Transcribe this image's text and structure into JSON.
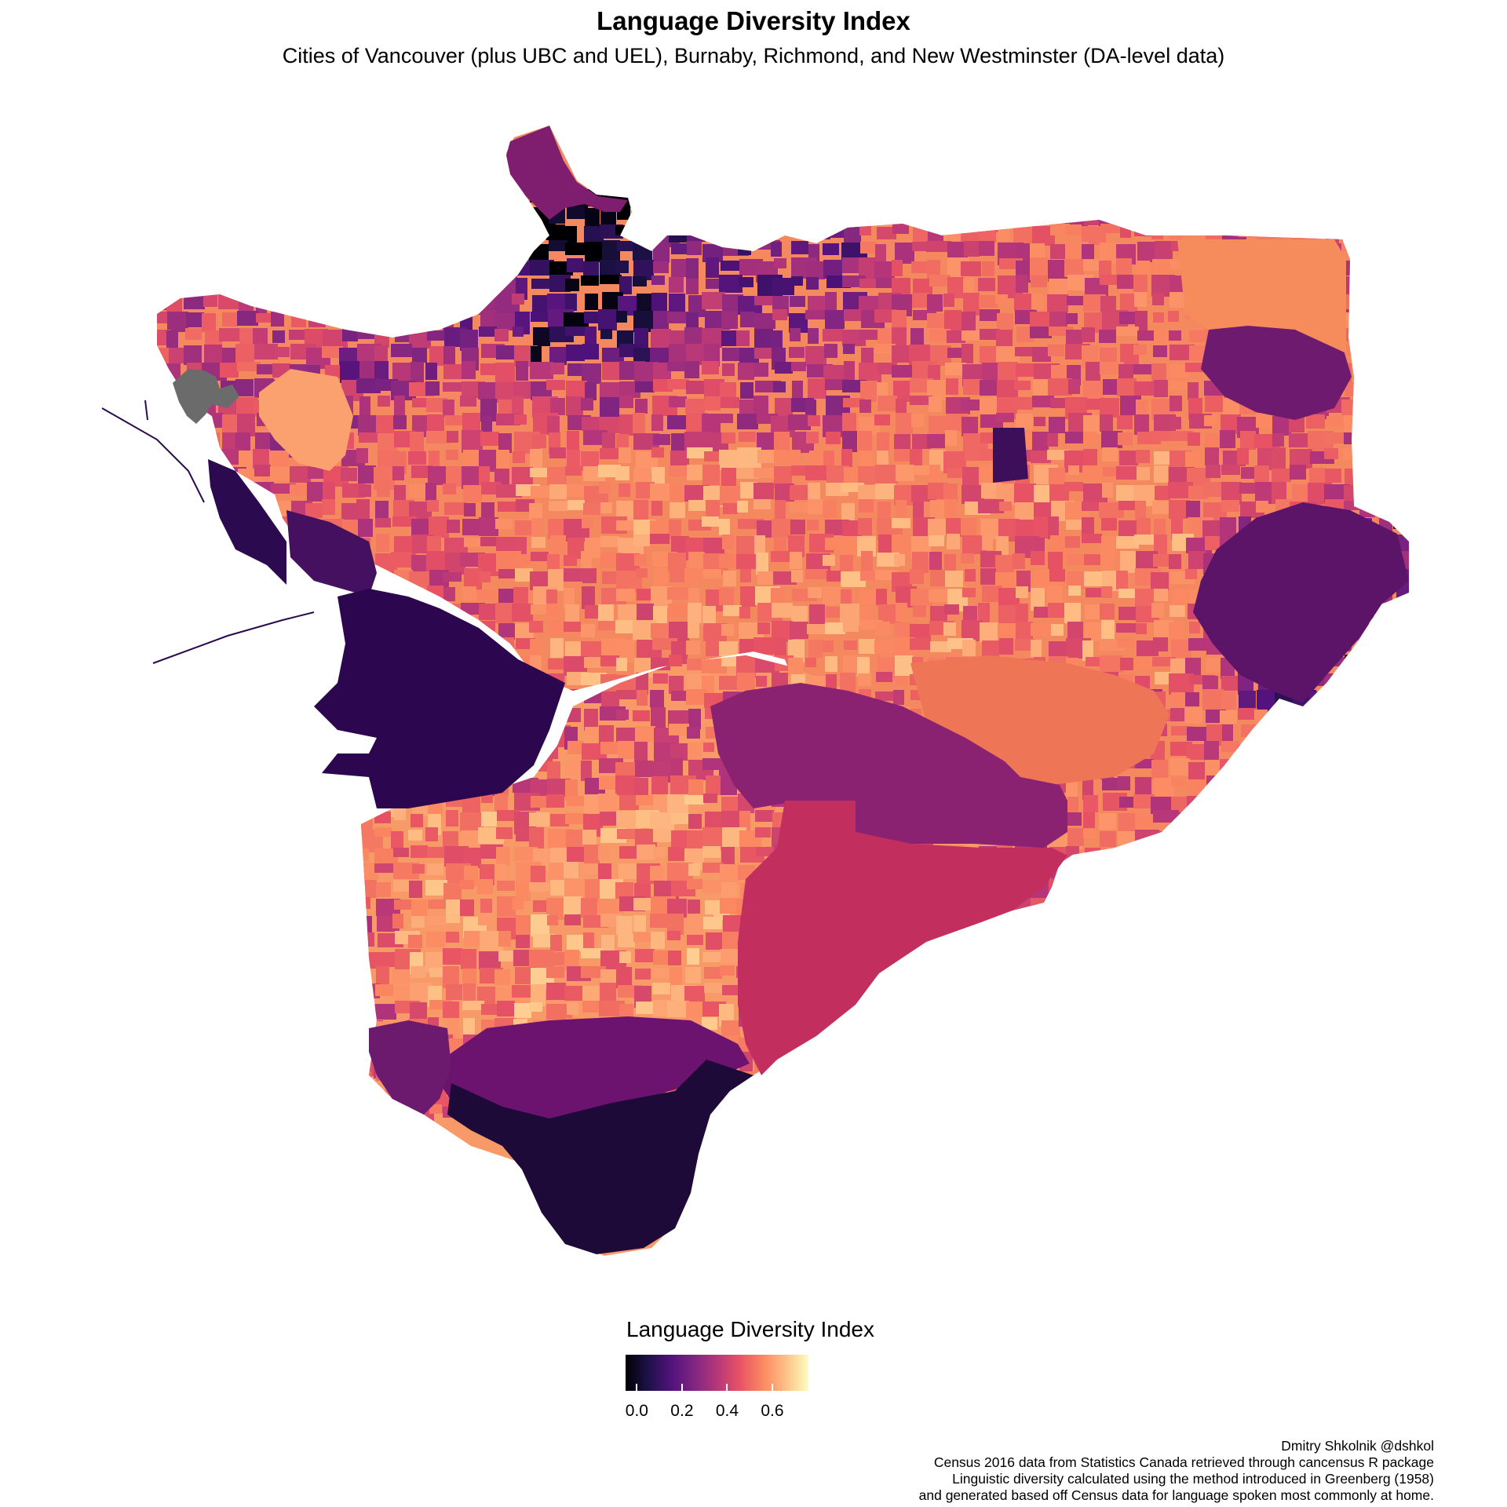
{
  "title": "Language Diversity Index",
  "subtitle": "Cities of Vancouver (plus UBC and UEL), Burnaby, Richmond, and New Westminster (DA-level data)",
  "legend": {
    "title": "Language Diversity Index",
    "ticks": [
      "0.0",
      "0.2",
      "0.4",
      "0.6"
    ],
    "tick_values": [
      0.0,
      0.2,
      0.4,
      0.6
    ],
    "range": [
      -0.05,
      0.76
    ],
    "colormap": "magma",
    "gradient_stops": [
      "#000004",
      "#1d1147",
      "#51127c",
      "#822681",
      "#b63679",
      "#e65164",
      "#fb8861",
      "#fec287",
      "#fcfdbf"
    ]
  },
  "caption": [
    "Dmitry Shkolnik @dshkol",
    "Census 2016 data from Statistics Canada retrieved through cancensus R package",
    "Linguistic diversity calculated using the method introduced in Greenberg (1958)",
    "and generated based off Census data for language spoken most commonly at home."
  ],
  "map_colors": {
    "no_data": "#6b6b6b",
    "water_outline": "#2b0a4e"
  }
}
